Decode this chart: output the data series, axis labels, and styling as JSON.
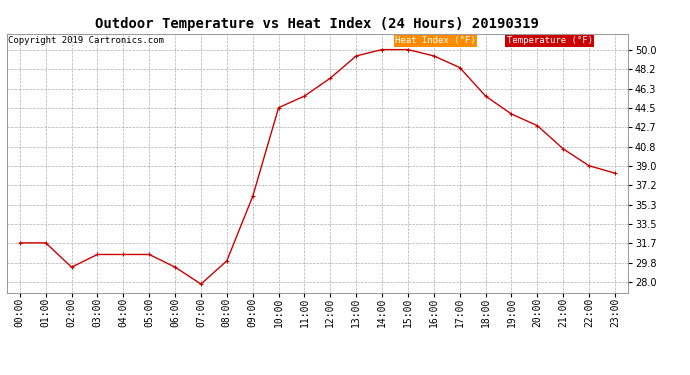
{
  "title": "Outdoor Temperature vs Heat Index (24 Hours) 20190319",
  "copyright": "Copyright 2019 Cartronics.com",
  "hours": [
    "00:00",
    "01:00",
    "02:00",
    "03:00",
    "04:00",
    "05:00",
    "06:00",
    "07:00",
    "08:00",
    "09:00",
    "10:00",
    "11:00",
    "12:00",
    "13:00",
    "14:00",
    "15:00",
    "16:00",
    "17:00",
    "18:00",
    "19:00",
    "20:00",
    "21:00",
    "22:00",
    "23:00"
  ],
  "temperature": [
    31.7,
    31.7,
    29.4,
    30.6,
    30.6,
    30.6,
    29.4,
    27.8,
    30.0,
    36.1,
    44.5,
    45.6,
    47.3,
    49.4,
    50.0,
    50.0,
    49.4,
    48.3,
    45.6,
    43.9,
    42.8,
    40.6,
    39.0,
    38.3
  ],
  "heat_index": [
    31.7,
    31.7,
    29.4,
    30.6,
    30.6,
    30.6,
    29.4,
    27.8,
    30.0,
    36.1,
    44.5,
    45.6,
    47.3,
    49.4,
    50.0,
    50.0,
    49.4,
    48.3,
    45.6,
    43.9,
    42.8,
    40.6,
    39.0,
    38.3
  ],
  "ylim": [
    27.0,
    51.5
  ],
  "yticks": [
    28.0,
    29.8,
    31.7,
    33.5,
    35.3,
    37.2,
    39.0,
    40.8,
    42.7,
    44.5,
    46.3,
    48.2,
    50.0
  ],
  "line_color": "#cc0000",
  "marker": "+",
  "background_color": "#ffffff",
  "grid_color": "#999999",
  "legend_heat_bg": "#ff8c00",
  "legend_temp_bg": "#cc0000",
  "legend_text_color": "#ffffff",
  "title_fontsize": 10,
  "tick_fontsize": 7,
  "copyright_fontsize": 6.5,
  "legend_fontsize": 6.5
}
